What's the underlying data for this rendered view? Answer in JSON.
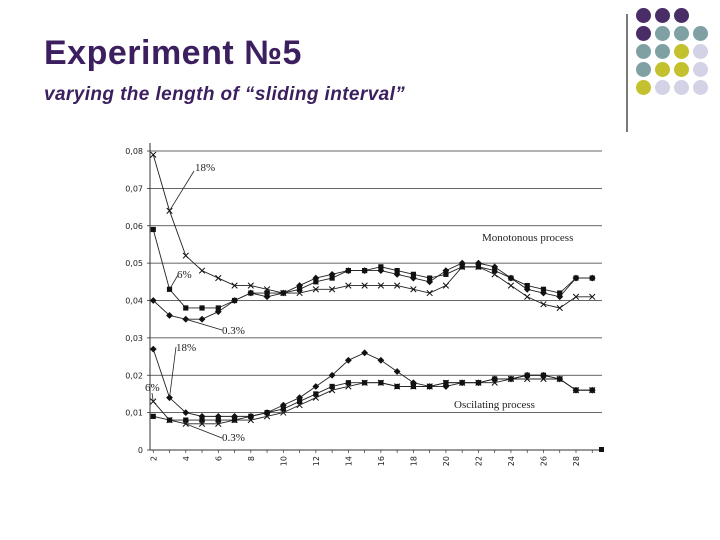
{
  "slide": {
    "title": "Experiment №5",
    "subtitle": "varying the length of “sliding interval”"
  },
  "decor": {
    "colors": {
      "purple": "#4a2c66",
      "teal": "#7fa1a4",
      "olive": "#c3c22e",
      "lavender": "#d3d2e6"
    }
  },
  "chart_data": {
    "type": "line",
    "title": "",
    "xlabel": "",
    "ylabel": "",
    "x": [
      2,
      3,
      4,
      5,
      6,
      7,
      8,
      9,
      10,
      11,
      12,
      13,
      14,
      15,
      16,
      17,
      18,
      19,
      20,
      21,
      22,
      23,
      24,
      25,
      26,
      27,
      28,
      29
    ],
    "x_tick_labels": [
      "2",
      "4",
      "6",
      "8",
      "10",
      "12",
      "14",
      "16",
      "18",
      "20",
      "22",
      "24",
      "26",
      "28"
    ],
    "y_tick_labels": [
      "0",
      "0,01",
      "0,02",
      "0,03",
      "0,04",
      "0,05",
      "0,06",
      "0,07",
      "0,08"
    ],
    "ylim": [
      0,
      0.08
    ],
    "grid": "horizontal",
    "annotations": [
      "18%",
      "6%",
      "0.3%",
      "Monotonous process",
      "18%",
      "6%",
      "0.3%",
      "Oscilating process"
    ],
    "series": [
      {
        "name": "",
        "group": "Monotonous process",
        "marker": "cross",
        "values": [
          0.079,
          0.064,
          0.052,
          0.048,
          0.046,
          0.044,
          0.044,
          0.043,
          0.042,
          0.042,
          0.043,
          0.043,
          0.044,
          0.044,
          0.044,
          0.044,
          0.043,
          0.042,
          0.044,
          0.049,
          0.049,
          0.047,
          0.044,
          0.041,
          0.039,
          0.038,
          0.041,
          0.041
        ]
      },
      {
        "name": "",
        "group": "Monotonous process",
        "marker": "square",
        "values": [
          0.059,
          0.043,
          0.038,
          0.038,
          0.038,
          0.04,
          0.042,
          0.042,
          0.042,
          0.043,
          0.045,
          0.046,
          0.048,
          0.048,
          0.049,
          0.048,
          0.047,
          0.046,
          0.047,
          0.049,
          0.049,
          0.048,
          0.046,
          0.044,
          0.043,
          0.042,
          0.046,
          0.046
        ]
      },
      {
        "name": "",
        "group": "Monotonous process",
        "marker": "diamond",
        "values": [
          0.04,
          0.036,
          0.035,
          0.035,
          0.037,
          0.04,
          0.042,
          0.041,
          0.042,
          0.044,
          0.046,
          0.047,
          0.048,
          0.048,
          0.048,
          0.047,
          0.046,
          0.045,
          0.048,
          0.05,
          0.05,
          0.049,
          0.046,
          0.043,
          0.042,
          0.041,
          0.046,
          0.046
        ]
      },
      {
        "name": "",
        "group": "Oscilating process",
        "marker": "cross",
        "values": [
          0.013,
          0.008,
          0.007,
          0.007,
          0.007,
          0.008,
          0.008,
          0.009,
          0.01,
          0.012,
          0.014,
          0.016,
          0.017,
          0.018,
          0.018,
          0.017,
          0.017,
          0.017,
          0.018,
          0.018,
          0.018,
          0.018,
          0.019,
          0.019,
          0.019,
          0.019,
          0.016,
          0.016
        ]
      },
      {
        "name": "",
        "group": "Oscilating process",
        "marker": "square",
        "values": [
          0.009,
          0.008,
          0.008,
          0.008,
          0.008,
          0.008,
          0.009,
          0.01,
          0.011,
          0.013,
          0.015,
          0.017,
          0.018,
          0.018,
          0.018,
          0.017,
          0.017,
          0.017,
          0.018,
          0.018,
          0.018,
          0.019,
          0.019,
          0.02,
          0.02,
          0.019,
          0.016,
          0.016
        ]
      },
      {
        "name": "",
        "group": "Oscilating process",
        "marker": "diamond",
        "values": [
          0.027,
          0.014,
          0.01,
          0.009,
          0.009,
          0.009,
          0.009,
          0.01,
          0.012,
          0.014,
          0.017,
          0.02,
          0.024,
          0.026,
          0.024,
          0.021,
          0.018,
          0.017,
          0.017,
          0.018,
          0.018,
          0.019,
          0.019,
          0.02,
          0.02,
          0.019,
          0.016,
          0.016
        ]
      }
    ]
  }
}
